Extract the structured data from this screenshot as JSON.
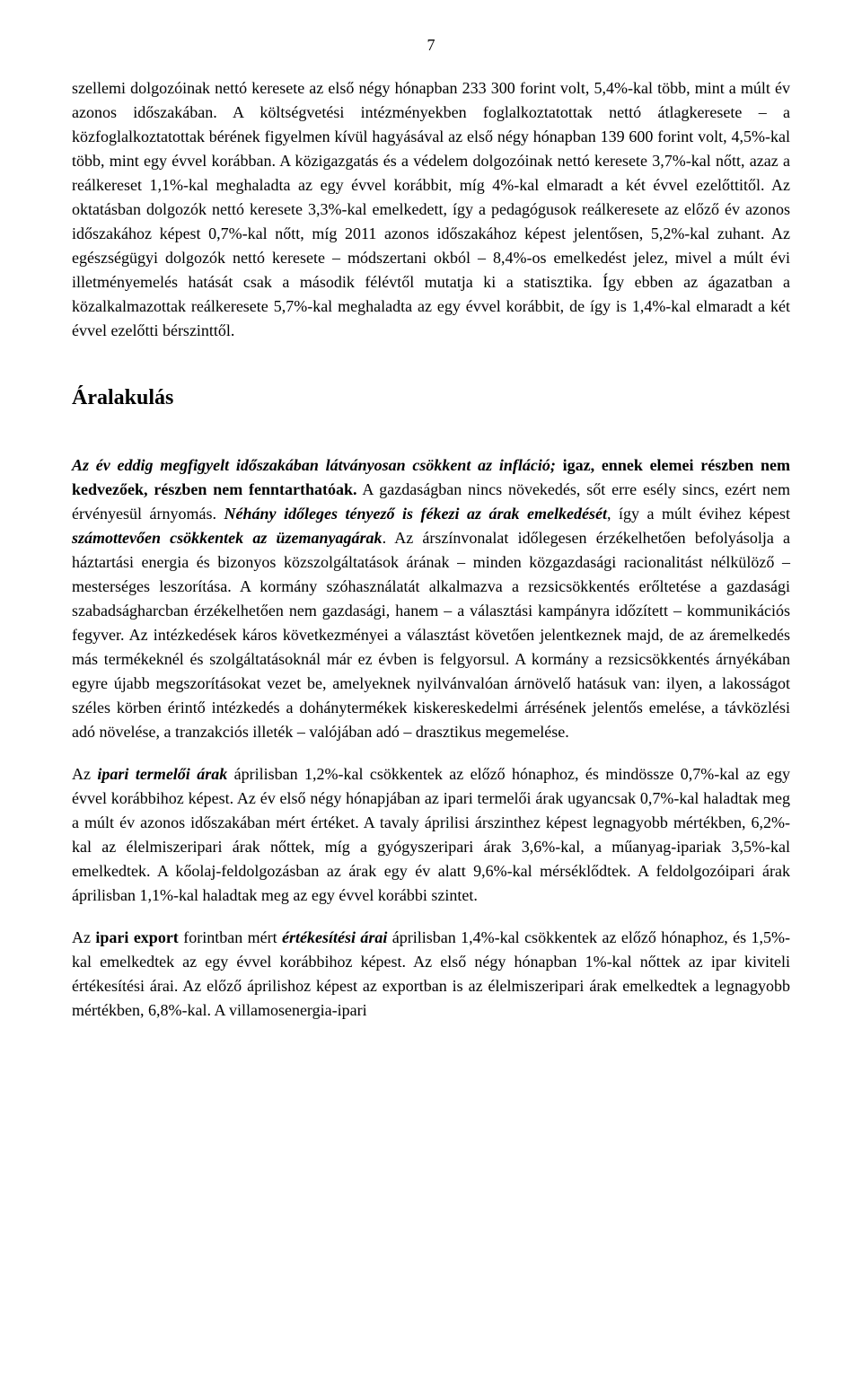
{
  "page_number": "7",
  "paragraphs": {
    "p1": {
      "s1": "szellemi dolgozóinak nettó keresete az első négy hónapban 233 300 forint volt, 5,4%-kal több, mint a múlt év azonos időszakában. A költségvetési intézményekben foglalkoztatottak nettó átlagkeresete – a közfoglalkoztatottak bérének figyelmen kívül hagyásával az első négy hónapban 139 600 forint volt, 4,5%-kal több, mint egy évvel korábban. A közigazgatás és a védelem dolgozóinak nettó keresete 3,7%-kal nőtt, azaz a reálkereset 1,1%-kal meghaladta az egy évvel korábbit, míg 4%-kal elmaradt a két évvel ezelőttitől. Az oktatásban dolgozók nettó keresete 3,3%-kal emelkedett, így a pedagógusok reálkeresete az előző év azonos időszakához képest 0,7%-kal nőtt, míg 2011 azonos időszakához képest jelentősen, 5,2%-kal zuhant. Az egészségügyi dolgozók nettó keresete – módszertani okból – 8,4%-os emelkedést jelez, mivel a múlt évi illetményemelés hatását csak a második félévtől mutatja ki a statisztika. Így ebben az ágazatban a közalkalmazottak reálkeresete 5,7%-kal meghaladta az egy évvel korábbit, de így is 1,4%-kal elmaradt a két évvel ezelőtti bérszinttől."
    },
    "heading": "Áralakulás",
    "p2": {
      "s1a": "Az év eddig megfigyelt időszakában látványosan csökkent az infláció;",
      "s1b": " igaz, ennek elemei részben nem kedvezőek, részben nem fenntarthatóak.",
      "s1c": " A gazdaságban nincs növekedés, sőt erre esély sincs, ezért nem érvényesül árnyomás. ",
      "s2a": "Néhány időleges tényező is fékezi az árak emelkedését",
      "s2b": ", így a múlt évihez képest ",
      "s2c": "számottevően csökkentek az üzemanyagárak",
      "s2d": ". Az árszínvonalat időlegesen érzékelhetően befolyásolja a háztartási energia és bizonyos közszolgáltatások árának – minden közgazdasági racionalitást nélkülöző – mesterséges leszorítása. A kormány szóhasználatát alkalmazva a rezsicsökkentés erőltetése a gazdasági szabadságharcban érzékelhetően nem gazdasági, hanem – a választási kampányra időzített – kommunikációs fegyver. Az intézkedések káros következményei a választást követően jelentkeznek majd, de az áremelkedés más termékeknél és szolgáltatásoknál már ez évben is felgyorsul. A kormány a rezsicsökkentés árnyékában egyre újabb megszorításokat vezet be, amelyeknek nyilvánvalóan árnövelő hatásuk van: ilyen, a lakosságot széles körben érintő intézkedés a dohánytermékek kiskereskedelmi árrésének jelentős emelése, a távközlési adó növelése, a tranzakciós illeték – valójában adó – drasztikus megemelése."
    },
    "p3": {
      "s1a": "Az ",
      "s1b": "ipari termelői árak",
      "s1c": " áprilisban 1,2%-kal csökkentek az előző hónaphoz, és mindössze 0,7%-kal az egy évvel korábbihoz képest. Az év első négy hónapjában az ipari termelői árak ugyancsak 0,7%-kal haladtak meg a múlt év azonos időszakában mért értéket. A tavaly áprilisi árszinthez képest legnagyobb mértékben, 6,2%-kal az élelmiszeripari árak nőttek, míg a gyógyszeripari árak 3,6%-kal, a műanyag-ipariak 3,5%-kal emelkedtek. A kőolaj-feldolgozásban az árak egy év alatt 9,6%-kal mérséklődtek. A feldolgozóipari árak áprilisban 1,1%-kal haladtak meg az egy évvel korábbi szintet."
    },
    "p4": {
      "s1a": "Az ",
      "s1b": "ipari export",
      "s1c": " forintban mért ",
      "s1d": "értékesítési árai",
      "s1e": " áprilisban 1,4%-kal csökkentek az előző hónaphoz, és 1,5%-kal emelkedtek az egy évvel korábbihoz képest. Az első négy hónapban 1%-kal nőttek az ipar kiviteli értékesítési árai. Az előző áprilishoz képest az exportban is az élelmiszeripari árak emelkedtek a legnagyobb mértékben, 6,8%-kal. A villamosenergia-ipari"
    }
  }
}
